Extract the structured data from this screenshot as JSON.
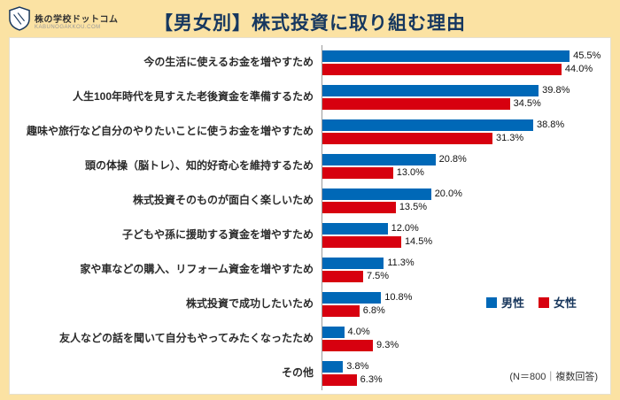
{
  "logo": {
    "title": "株の学校ドットコム",
    "subtitle": "KABUNOGAKKOU.COM"
  },
  "header": {
    "title": "【男女別】株式投資に取り組む理由"
  },
  "note": "(N＝800｜複数回答)",
  "colors": {
    "male": "#0068B7",
    "female": "#D7000F",
    "background": "#FBE2A3",
    "title_text": "#16375F"
  },
  "chart_data": {
    "type": "bar",
    "orientation": "horizontal",
    "title": "【男女別】株式投資に取り組む理由",
    "xlabel": "",
    "ylabel": "",
    "xlim": [
      0,
      50
    ],
    "value_suffix": "%",
    "grid": false,
    "legend_position": "right-middle",
    "categories": [
      "今の生活に使えるお金を増やすため",
      "人生100年時代を見すえた老後資金を準備するため",
      "趣味や旅行など自分のやりたいことに使うお金を増やすため",
      "頭の体操（脳トレ）、知的好奇心を維持するため",
      "株式投資そのものが面白く楽しいため",
      "子どもや孫に援助する資金を増やすため",
      "家や車などの購入、リフォーム資金を増やすため",
      "株式投資で成功したいため",
      "友人などの話を聞いて自分もやってみたくなったため",
      "その他"
    ],
    "series": [
      {
        "name": "男性",
        "color": "#0068B7",
        "values": [
          45.5,
          39.8,
          38.8,
          20.8,
          20.0,
          12.0,
          11.3,
          10.8,
          4.0,
          3.8
        ]
      },
      {
        "name": "女性",
        "color": "#D7000F",
        "values": [
          44.0,
          34.5,
          31.3,
          13.0,
          13.5,
          14.5,
          7.5,
          6.8,
          9.3,
          6.3
        ]
      }
    ],
    "annotation": "(N＝800｜複数回答)"
  }
}
